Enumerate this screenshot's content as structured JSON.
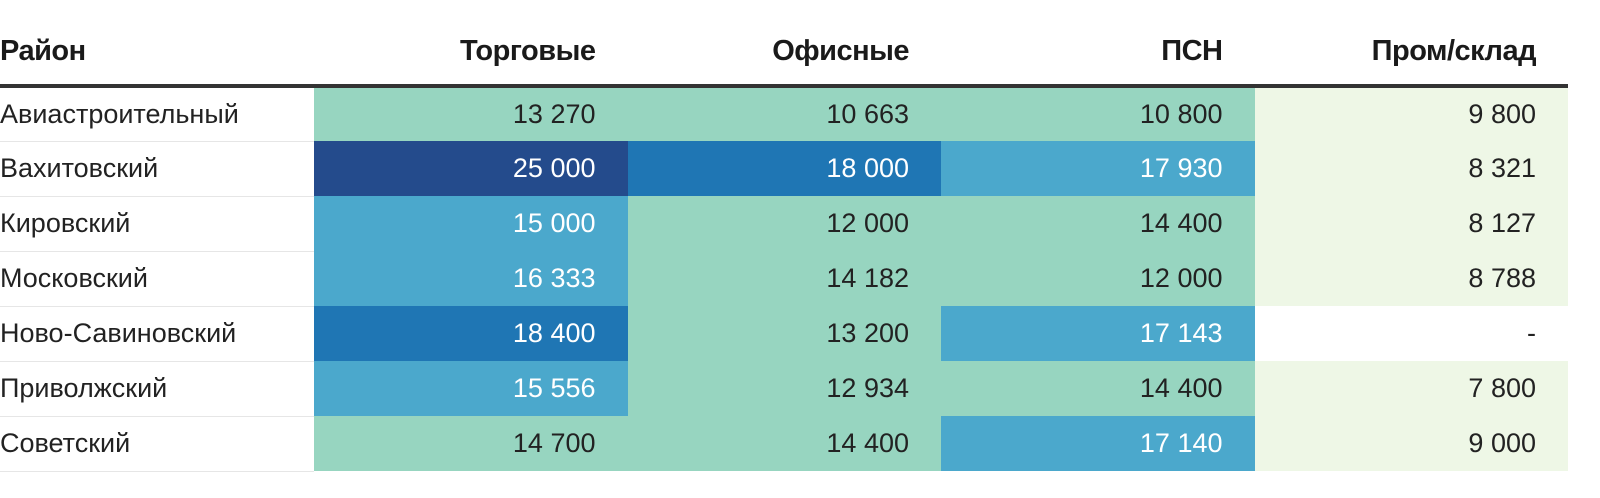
{
  "chart_data": {
    "type": "table",
    "columns": [
      "Район",
      "Торговые",
      "Офисные",
      "ПСН",
      "Пром/склад"
    ],
    "rows": [
      {
        "district": "Авиастроительный",
        "values": [
          "13 270",
          "10 663",
          "10 800",
          "9 800"
        ]
      },
      {
        "district": "Вахитовский",
        "values": [
          "25 000",
          "18 000",
          "17 930",
          "8 321"
        ]
      },
      {
        "district": "Кировский",
        "values": [
          "15 000",
          "12 000",
          "14 400",
          "8 127"
        ]
      },
      {
        "district": "Московский",
        "values": [
          "16 333",
          "14 182",
          "12 000",
          "8 788"
        ]
      },
      {
        "district": "Ново-Савиновский",
        "values": [
          "18 400",
          "13 200",
          "17 143",
          "-"
        ]
      },
      {
        "district": "Приволжский",
        "values": [
          "15 556",
          "12 934",
          "14 400",
          "7 800"
        ]
      },
      {
        "district": "Советский",
        "values": [
          "14 700",
          "14 400",
          "17 140",
          "9 000"
        ]
      }
    ],
    "color_scale": {
      "bins": [
        {
          "min": 0,
          "max": 10000,
          "color": "#eef7e6",
          "text": "#222222"
        },
        {
          "min": 10000,
          "max": 15000,
          "color": "#97d5c0",
          "text": "#222222"
        },
        {
          "min": 15000,
          "max": 18000,
          "color": "#4ba8cc",
          "text": "#ffffff"
        },
        {
          "min": 18000,
          "max": 20000,
          "color": "#1f76b4",
          "text": "#ffffff"
        },
        {
          "min": 20000,
          "max": 100000,
          "color": "#244b8c",
          "text": "#ffffff"
        }
      ],
      "missing_color": "#ffffff"
    }
  }
}
